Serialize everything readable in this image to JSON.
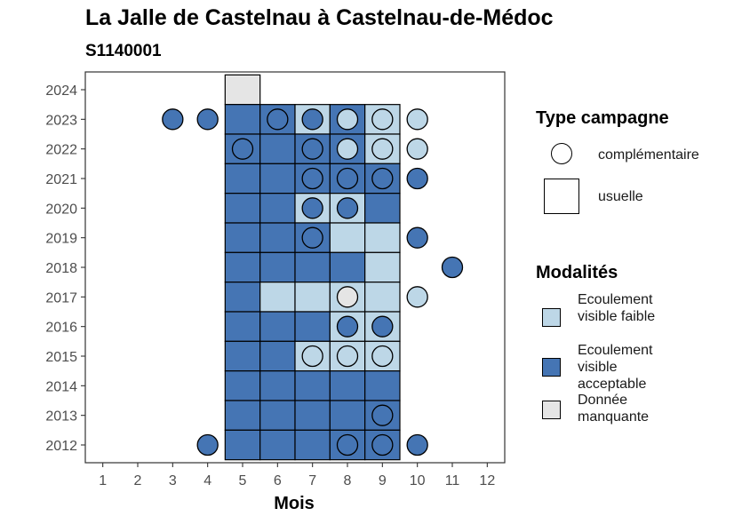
{
  "title": "La Jalle de Castelnau à Castelnau-de-Médoc",
  "subtitle": "S1140001",
  "chart_data": {
    "type": "heatmap",
    "xlabel": "Mois",
    "ylabel": "",
    "x_ticks": [
      1,
      2,
      3,
      4,
      5,
      6,
      7,
      8,
      9,
      10,
      11,
      12
    ],
    "y_ticks": [
      2012,
      2013,
      2014,
      2015,
      2016,
      2017,
      2018,
      2019,
      2020,
      2021,
      2022,
      2023,
      2024
    ],
    "xlim": [
      0.5,
      12.5
    ],
    "ylim": [
      2011.4,
      2024.6
    ],
    "grid": false,
    "legend_position": "right",
    "colors": {
      "Ecoulement visible faible": "#bdd7e7",
      "Ecoulement visible acceptable": "#4575b4",
      "Donnée manquante": "#e5e5e5"
    },
    "usuelle": [
      {
        "year": 2024,
        "month": 5,
        "modalite": "Donnée manquante"
      },
      {
        "year": 2023,
        "month": 5,
        "modalite": "Ecoulement visible acceptable"
      },
      {
        "year": 2023,
        "month": 6,
        "modalite": "Ecoulement visible acceptable"
      },
      {
        "year": 2023,
        "month": 7,
        "modalite": "Ecoulement visible faible"
      },
      {
        "year": 2023,
        "month": 8,
        "modalite": "Ecoulement visible acceptable"
      },
      {
        "year": 2023,
        "month": 9,
        "modalite": "Ecoulement visible faible"
      },
      {
        "year": 2022,
        "month": 5,
        "modalite": "Ecoulement visible acceptable"
      },
      {
        "year": 2022,
        "month": 6,
        "modalite": "Ecoulement visible acceptable"
      },
      {
        "year": 2022,
        "month": 7,
        "modalite": "Ecoulement visible acceptable"
      },
      {
        "year": 2022,
        "month": 8,
        "modalite": "Ecoulement visible acceptable"
      },
      {
        "year": 2022,
        "month": 9,
        "modalite": "Ecoulement visible faible"
      },
      {
        "year": 2021,
        "month": 5,
        "modalite": "Ecoulement visible acceptable"
      },
      {
        "year": 2021,
        "month": 6,
        "modalite": "Ecoulement visible acceptable"
      },
      {
        "year": 2021,
        "month": 7,
        "modalite": "Ecoulement visible acceptable"
      },
      {
        "year": 2021,
        "month": 8,
        "modalite": "Ecoulement visible acceptable"
      },
      {
        "year": 2021,
        "month": 9,
        "modalite": "Ecoulement visible acceptable"
      },
      {
        "year": 2020,
        "month": 5,
        "modalite": "Ecoulement visible acceptable"
      },
      {
        "year": 2020,
        "month": 6,
        "modalite": "Ecoulement visible acceptable"
      },
      {
        "year": 2020,
        "month": 7,
        "modalite": "Ecoulement visible faible"
      },
      {
        "year": 2020,
        "month": 8,
        "modalite": "Ecoulement visible faible"
      },
      {
        "year": 2020,
        "month": 9,
        "modalite": "Ecoulement visible acceptable"
      },
      {
        "year": 2019,
        "month": 5,
        "modalite": "Ecoulement visible acceptable"
      },
      {
        "year": 2019,
        "month": 6,
        "modalite": "Ecoulement visible acceptable"
      },
      {
        "year": 2019,
        "month": 7,
        "modalite": "Ecoulement visible acceptable"
      },
      {
        "year": 2019,
        "month": 8,
        "modalite": "Ecoulement visible faible"
      },
      {
        "year": 2019,
        "month": 9,
        "modalite": "Ecoulement visible faible"
      },
      {
        "year": 2018,
        "month": 5,
        "modalite": "Ecoulement visible acceptable"
      },
      {
        "year": 2018,
        "month": 6,
        "modalite": "Ecoulement visible acceptable"
      },
      {
        "year": 2018,
        "month": 7,
        "modalite": "Ecoulement visible acceptable"
      },
      {
        "year": 2018,
        "month": 8,
        "modalite": "Ecoulement visible acceptable"
      },
      {
        "year": 2018,
        "month": 9,
        "modalite": "Ecoulement visible faible"
      },
      {
        "year": 2017,
        "month": 5,
        "modalite": "Ecoulement visible acceptable"
      },
      {
        "year": 2017,
        "month": 6,
        "modalite": "Ecoulement visible faible"
      },
      {
        "year": 2017,
        "month": 7,
        "modalite": "Ecoulement visible faible"
      },
      {
        "year": 2017,
        "month": 8,
        "modalite": "Ecoulement visible faible"
      },
      {
        "year": 2017,
        "month": 9,
        "modalite": "Ecoulement visible faible"
      },
      {
        "year": 2016,
        "month": 5,
        "modalite": "Ecoulement visible acceptable"
      },
      {
        "year": 2016,
        "month": 6,
        "modalite": "Ecoulement visible acceptable"
      },
      {
        "year": 2016,
        "month": 7,
        "modalite": "Ecoulement visible acceptable"
      },
      {
        "year": 2016,
        "month": 8,
        "modalite": "Ecoulement visible faible"
      },
      {
        "year": 2016,
        "month": 9,
        "modalite": "Ecoulement visible faible"
      },
      {
        "year": 2015,
        "month": 5,
        "modalite": "Ecoulement visible acceptable"
      },
      {
        "year": 2015,
        "month": 6,
        "modalite": "Ecoulement visible acceptable"
      },
      {
        "year": 2015,
        "month": 7,
        "modalite": "Ecoulement visible faible"
      },
      {
        "year": 2015,
        "month": 8,
        "modalite": "Ecoulement visible faible"
      },
      {
        "year": 2015,
        "month": 9,
        "modalite": "Ecoulement visible faible"
      },
      {
        "year": 2014,
        "month": 5,
        "modalite": "Ecoulement visible acceptable"
      },
      {
        "year": 2014,
        "month": 6,
        "modalite": "Ecoulement visible acceptable"
      },
      {
        "year": 2014,
        "month": 7,
        "modalite": "Ecoulement visible acceptable"
      },
      {
        "year": 2014,
        "month": 8,
        "modalite": "Ecoulement visible acceptable"
      },
      {
        "year": 2014,
        "month": 9,
        "modalite": "Ecoulement visible acceptable"
      },
      {
        "year": 2013,
        "month": 5,
        "modalite": "Ecoulement visible acceptable"
      },
      {
        "year": 2013,
        "month": 6,
        "modalite": "Ecoulement visible acceptable"
      },
      {
        "year": 2013,
        "month": 7,
        "modalite": "Ecoulement visible acceptable"
      },
      {
        "year": 2013,
        "month": 8,
        "modalite": "Ecoulement visible acceptable"
      },
      {
        "year": 2013,
        "month": 9,
        "modalite": "Ecoulement visible acceptable"
      },
      {
        "year": 2012,
        "month": 5,
        "modalite": "Ecoulement visible acceptable"
      },
      {
        "year": 2012,
        "month": 6,
        "modalite": "Ecoulement visible acceptable"
      },
      {
        "year": 2012,
        "month": 7,
        "modalite": "Ecoulement visible acceptable"
      },
      {
        "year": 2012,
        "month": 8,
        "modalite": "Ecoulement visible acceptable"
      },
      {
        "year": 2012,
        "month": 9,
        "modalite": "Ecoulement visible acceptable"
      }
    ],
    "complementaire": [
      {
        "year": 2023,
        "month": 3,
        "modalite": "Ecoulement visible acceptable"
      },
      {
        "year": 2023,
        "month": 4,
        "modalite": "Ecoulement visible acceptable"
      },
      {
        "year": 2023,
        "month": 6,
        "modalite": "Ecoulement visible acceptable"
      },
      {
        "year": 2023,
        "month": 7,
        "modalite": "Ecoulement visible acceptable"
      },
      {
        "year": 2023,
        "month": 8,
        "modalite": "Ecoulement visible faible"
      },
      {
        "year": 2023,
        "month": 9,
        "modalite": "Ecoulement visible faible"
      },
      {
        "year": 2023,
        "month": 10,
        "modalite": "Ecoulement visible faible"
      },
      {
        "year": 2022,
        "month": 5,
        "modalite": "Ecoulement visible acceptable"
      },
      {
        "year": 2022,
        "month": 7,
        "modalite": "Ecoulement visible acceptable"
      },
      {
        "year": 2022,
        "month": 8,
        "modalite": "Ecoulement visible faible"
      },
      {
        "year": 2022,
        "month": 9,
        "modalite": "Ecoulement visible faible"
      },
      {
        "year": 2022,
        "month": 10,
        "modalite": "Ecoulement visible faible"
      },
      {
        "year": 2021,
        "month": 7,
        "modalite": "Ecoulement visible acceptable"
      },
      {
        "year": 2021,
        "month": 8,
        "modalite": "Ecoulement visible acceptable"
      },
      {
        "year": 2021,
        "month": 9,
        "modalite": "Ecoulement visible acceptable"
      },
      {
        "year": 2021,
        "month": 10,
        "modalite": "Ecoulement visible acceptable"
      },
      {
        "year": 2020,
        "month": 7,
        "modalite": "Ecoulement visible acceptable"
      },
      {
        "year": 2020,
        "month": 8,
        "modalite": "Ecoulement visible acceptable"
      },
      {
        "year": 2019,
        "month": 7,
        "modalite": "Ecoulement visible acceptable"
      },
      {
        "year": 2019,
        "month": 10,
        "modalite": "Ecoulement visible acceptable"
      },
      {
        "year": 2018,
        "month": 11,
        "modalite": "Ecoulement visible acceptable"
      },
      {
        "year": 2017,
        "month": 8,
        "modalite": "Donnée manquante"
      },
      {
        "year": 2017,
        "month": 10,
        "modalite": "Ecoulement visible faible"
      },
      {
        "year": 2016,
        "month": 8,
        "modalite": "Ecoulement visible acceptable"
      },
      {
        "year": 2016,
        "month": 9,
        "modalite": "Ecoulement visible acceptable"
      },
      {
        "year": 2015,
        "month": 7,
        "modalite": "Ecoulement visible faible"
      },
      {
        "year": 2015,
        "month": 8,
        "modalite": "Ecoulement visible faible"
      },
      {
        "year": 2015,
        "month": 9,
        "modalite": "Ecoulement visible faible"
      },
      {
        "year": 2013,
        "month": 9,
        "modalite": "Ecoulement visible acceptable"
      },
      {
        "year": 2012,
        "month": 4,
        "modalite": "Ecoulement visible acceptable"
      },
      {
        "year": 2012,
        "month": 8,
        "modalite": "Ecoulement visible acceptable"
      },
      {
        "year": 2012,
        "month": 9,
        "modalite": "Ecoulement visible acceptable"
      },
      {
        "year": 2012,
        "month": 10,
        "modalite": "Ecoulement visible acceptable"
      }
    ]
  },
  "legend": {
    "type_title": "Type campagne",
    "type_items": [
      {
        "label": "complémentaire",
        "icon": "circle"
      },
      {
        "label": "usuelle",
        "icon": "square"
      }
    ],
    "modalites_title": "Modalités",
    "modalites_items": [
      {
        "label": "Ecoulement visible faible",
        "color": "#bdd7e7"
      },
      {
        "label": "Ecoulement visible acceptable",
        "color": "#4575b4"
      },
      {
        "label": "Donnée manquante",
        "color": "#e5e5e5"
      }
    ]
  }
}
